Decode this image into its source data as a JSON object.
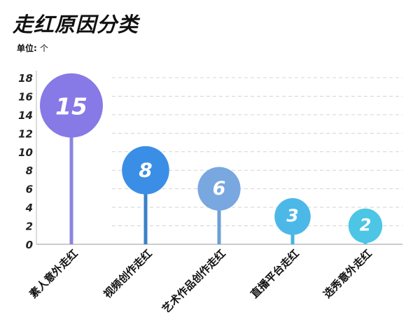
{
  "title": "走红原因分类",
  "unit_label": "单位:",
  "unit_value": "个",
  "chart_data": {
    "type": "bar",
    "style": "lollipop",
    "title": "走红原因分类",
    "ylabel": "",
    "xlabel": "",
    "categories": [
      "素人意外走红",
      "视频创作走红",
      "艺术作品创作走红",
      "直播平台走红",
      "选秀意外走红"
    ],
    "values": [
      15,
      8,
      6,
      3,
      2
    ],
    "colors": [
      "#8779e6",
      "#3b8ee6",
      "#79a7e0",
      "#4cb8e8",
      "#4cc6e4"
    ],
    "stem_colors": [
      "#8a85e0",
      "#3a82c8",
      "#6d9fd6",
      "#47b3e3",
      "#4dc4e0"
    ],
    "ylim": [
      0,
      18
    ],
    "yticks": [
      0,
      2,
      4,
      6,
      8,
      10,
      12,
      14,
      16,
      18
    ],
    "grid": true
  }
}
